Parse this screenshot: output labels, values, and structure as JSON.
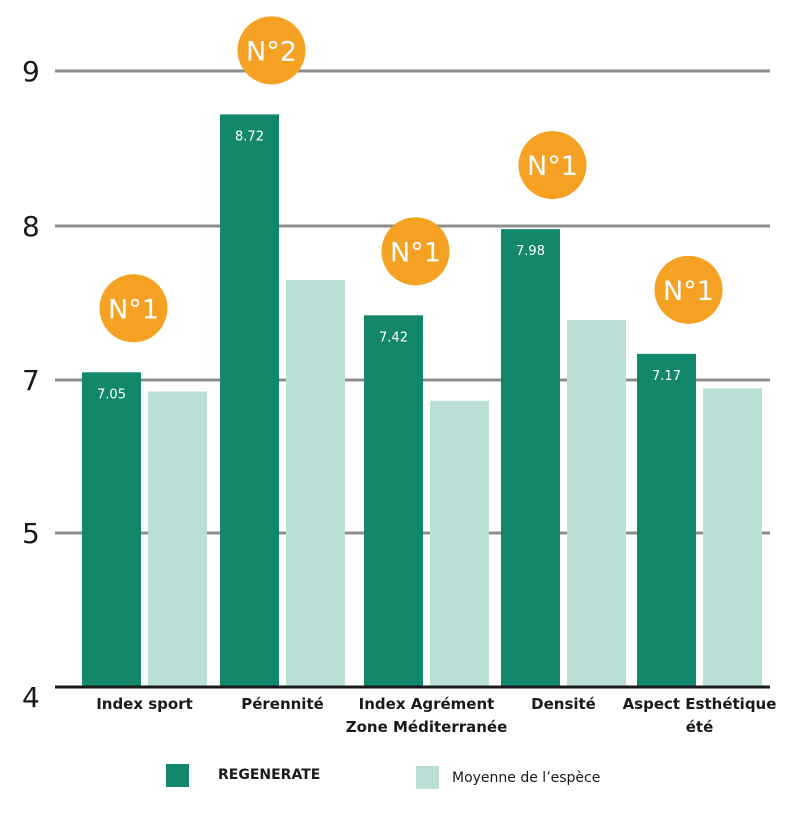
{
  "chart_data": {
    "type": "bar",
    "categories": [
      [
        "Index sport"
      ],
      [
        "Pérennité"
      ],
      [
        "Index Agrément",
        "Zone Méditerranée"
      ],
      [
        "Densité"
      ],
      [
        "Aspect Esthétique",
        "été"
      ]
    ],
    "y_ticks": [
      "4",
      "5",
      "7",
      "8",
      "9"
    ],
    "series": [
      {
        "name": "REGENERATE",
        "color": "#12876b",
        "values": [
          7.05,
          8.72,
          7.42,
          7.98,
          7.17
        ],
        "data_labels": [
          "7.05",
          "8.72",
          "7.42",
          "7.98",
          "7.17"
        ]
      },
      {
        "name": "Moyenne de l’espèce",
        "color": "#badfd6",
        "values": [
          6.85,
          7.65,
          6.73,
          7.39,
          6.89
        ]
      }
    ],
    "badges": [
      "N°1",
      "N°2",
      "N°1",
      "N°1",
      "N°1"
    ],
    "badge_color": "#f5a123",
    "grid": true,
    "legend_position": "bottom"
  }
}
